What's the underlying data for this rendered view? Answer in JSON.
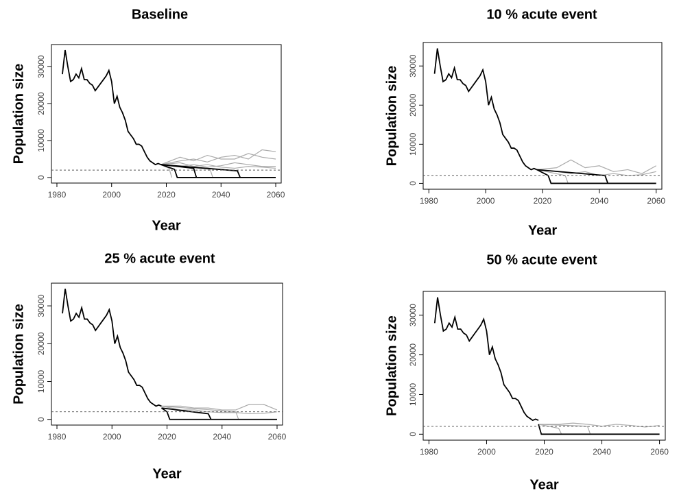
{
  "chart_data": [
    {
      "type": "line",
      "title": "Baseline",
      "xlabel": "Year",
      "ylabel": "Population size",
      "xlim": [
        1978,
        2062
      ],
      "ylim": [
        -1500,
        36000
      ],
      "xticks": [
        1980,
        2000,
        2020,
        2040,
        2060
      ],
      "yticks": [
        0,
        10000,
        20000,
        30000
      ],
      "threshold": 2000,
      "series": [
        {
          "color": "#aaaaaa",
          "x": [
            2018,
            2025,
            2030,
            2035,
            2040,
            2045,
            2050,
            2055,
            2060
          ],
          "values": [
            3500,
            4500,
            5000,
            4200,
            5500,
            6000,
            5000,
            7500,
            7000
          ]
        },
        {
          "color": "#aaaaaa",
          "x": [
            2018,
            2025,
            2030,
            2035,
            2040,
            2045,
            2050,
            2055,
            2060
          ],
          "values": [
            3500,
            3000,
            3500,
            2800,
            3200,
            4000,
            3500,
            3000,
            3000
          ]
        },
        {
          "color": "#aaaaaa",
          "x": [
            2018,
            2025,
            2030,
            2035,
            2040,
            2045,
            2050,
            2055,
            2060
          ],
          "values": [
            3500,
            4000,
            3000,
            3500,
            2800,
            2500,
            3000,
            2800,
            2500
          ]
        },
        {
          "color": "#aaaaaa",
          "x": [
            2018,
            2025,
            2030,
            2035,
            2040,
            2045,
            2050,
            2055,
            2060
          ],
          "values": [
            3500,
            5500,
            4500,
            6000,
            5000,
            5000,
            6500,
            5500,
            5000
          ]
        },
        {
          "color": "#aaaaaa",
          "x": [
            2018,
            2021,
            2022
          ],
          "values": [
            3500,
            2500,
            0
          ]
        },
        {
          "color": "#aaaaaa",
          "x": [
            2018,
            2036,
            2037
          ],
          "values": [
            3500,
            2200,
            0
          ]
        },
        {
          "color": "#000000",
          "x": [
            2018,
            2023,
            2024,
            2060
          ],
          "values": [
            3500,
            2200,
            0,
            0
          ]
        },
        {
          "color": "#000000",
          "x": [
            2018,
            2030,
            2031
          ],
          "values": [
            3500,
            2500,
            0
          ]
        },
        {
          "color": "#000000",
          "x": [
            2018,
            2046,
            2047
          ],
          "values": [
            3500,
            1800,
            0
          ]
        },
        {
          "color": "#000000",
          "x": [
            1982,
            1983,
            1984,
            1985,
            1986,
            1987,
            1988,
            1989,
            1990,
            1991,
            1992,
            1993,
            1994,
            1995,
            1996,
            1997,
            1998,
            1999,
            2000,
            2001,
            2002,
            2003,
            2004,
            2005,
            2006,
            2007,
            2008,
            2009,
            2010,
            2011,
            2012,
            2013,
            2014,
            2015,
            2016,
            2017,
            2018
          ],
          "values": [
            28000,
            34500,
            30000,
            26000,
            26500,
            28000,
            27000,
            29500,
            26500,
            26500,
            25500,
            25000,
            23500,
            24500,
            25500,
            26500,
            27500,
            29000,
            26000,
            20000,
            22000,
            19000,
            17500,
            15500,
            12500,
            11500,
            10500,
            9000,
            9000,
            8500,
            7000,
            5500,
            4500,
            4000,
            3500,
            3800,
            3500
          ]
        }
      ]
    },
    {
      "type": "line",
      "title": "10 % acute event",
      "xlabel": "Year",
      "ylabel": "Population size",
      "xlim": [
        1978,
        2062
      ],
      "ylim": [
        -1500,
        36000
      ],
      "xticks": [
        1980,
        2000,
        2020,
        2040,
        2060
      ],
      "yticks": [
        0,
        10000,
        20000,
        30000
      ],
      "threshold": 2000,
      "series": [
        {
          "color": "#aaaaaa",
          "x": [
            2018,
            2025,
            2030,
            2035,
            2040,
            2045,
            2050,
            2055,
            2060
          ],
          "values": [
            3500,
            4000,
            6000,
            4000,
            4500,
            3000,
            3500,
            2500,
            4500
          ]
        },
        {
          "color": "#aaaaaa",
          "x": [
            2018,
            2025,
            2030,
            2035,
            2040,
            2045,
            2050,
            2055,
            2060
          ],
          "values": [
            3500,
            3000,
            2500,
            3000,
            2000,
            2500,
            2000,
            2200,
            3000
          ]
        },
        {
          "color": "#aaaaaa",
          "x": [
            2018,
            2028,
            2029
          ],
          "values": [
            3500,
            2000,
            0
          ]
        },
        {
          "color": "#000000",
          "x": [
            2018,
            2022,
            2023,
            2060
          ],
          "values": [
            3500,
            2000,
            0,
            0
          ]
        },
        {
          "color": "#000000",
          "x": [
            2018,
            2042,
            2043
          ],
          "values": [
            3500,
            2000,
            0
          ]
        },
        {
          "color": "#000000",
          "x": [
            1982,
            1983,
            1984,
            1985,
            1986,
            1987,
            1988,
            1989,
            1990,
            1991,
            1992,
            1993,
            1994,
            1995,
            1996,
            1997,
            1998,
            1999,
            2000,
            2001,
            2002,
            2003,
            2004,
            2005,
            2006,
            2007,
            2008,
            2009,
            2010,
            2011,
            2012,
            2013,
            2014,
            2015,
            2016,
            2017,
            2018
          ],
          "values": [
            28000,
            34500,
            30000,
            26000,
            26500,
            28000,
            27000,
            29500,
            26500,
            26500,
            25500,
            25000,
            23500,
            24500,
            25500,
            26500,
            27500,
            29000,
            26000,
            20000,
            22000,
            19000,
            17500,
            15500,
            12500,
            11500,
            10500,
            9000,
            9000,
            8500,
            7000,
            5500,
            4500,
            4000,
            3500,
            3800,
            3500
          ]
        }
      ]
    },
    {
      "type": "line",
      "title": "25 % acute event",
      "xlabel": "Year",
      "ylabel": "Population size",
      "xlim": [
        1978,
        2062
      ],
      "ylim": [
        -1500,
        36000
      ],
      "xticks": [
        1980,
        2000,
        2020,
        2040,
        2060
      ],
      "yticks": [
        0,
        10000,
        20000,
        30000
      ],
      "threshold": 2000,
      "series": [
        {
          "color": "#aaaaaa",
          "x": [
            2018,
            2025,
            2030,
            2035,
            2040,
            2045,
            2050,
            2055,
            2060
          ],
          "values": [
            3500,
            3500,
            3000,
            3000,
            2500,
            2500,
            4000,
            4000,
            2500
          ]
        },
        {
          "color": "#aaaaaa",
          "x": [
            2018,
            2025,
            2030,
            2035,
            2040,
            2045,
            2050,
            2055,
            2060
          ],
          "values": [
            3500,
            2500,
            2500,
            2000,
            1800,
            1800,
            1500,
            1600,
            2000
          ]
        },
        {
          "color": "#aaaaaa",
          "x": [
            2018,
            2045,
            2046
          ],
          "values": [
            3500,
            2000,
            0
          ]
        },
        {
          "color": "#000000",
          "x": [
            2018,
            2020,
            2021,
            2060
          ],
          "values": [
            3000,
            2000,
            0,
            0
          ]
        },
        {
          "color": "#000000",
          "x": [
            2018,
            2035,
            2036
          ],
          "values": [
            3000,
            1500,
            0
          ]
        },
        {
          "color": "#000000",
          "x": [
            1982,
            1983,
            1984,
            1985,
            1986,
            1987,
            1988,
            1989,
            1990,
            1991,
            1992,
            1993,
            1994,
            1995,
            1996,
            1997,
            1998,
            1999,
            2000,
            2001,
            2002,
            2003,
            2004,
            2005,
            2006,
            2007,
            2008,
            2009,
            2010,
            2011,
            2012,
            2013,
            2014,
            2015,
            2016,
            2017,
            2018
          ],
          "values": [
            28000,
            34500,
            30000,
            26000,
            26500,
            28000,
            27000,
            29500,
            26500,
            26500,
            25500,
            25000,
            23500,
            24500,
            25500,
            26500,
            27500,
            29000,
            26000,
            20000,
            22000,
            19000,
            17500,
            15500,
            12500,
            11500,
            10500,
            9000,
            9000,
            8500,
            7000,
            5500,
            4500,
            4000,
            3500,
            3800,
            3500
          ]
        }
      ]
    },
    {
      "type": "line",
      "title": "50 % acute event",
      "xlabel": "Year",
      "ylabel": "Population size",
      "xlim": [
        1978,
        2062
      ],
      "ylim": [
        -1500,
        36000
      ],
      "xticks": [
        1980,
        2000,
        2020,
        2040,
        2060
      ],
      "yticks": [
        0,
        10000,
        20000,
        30000
      ],
      "threshold": 2000,
      "series": [
        {
          "color": "#aaaaaa",
          "x": [
            2018,
            2025,
            2030,
            2035,
            2040,
            2045,
            2050,
            2055,
            2060
          ],
          "values": [
            2500,
            2500,
            2800,
            2500,
            2000,
            2500,
            2200,
            1800,
            2200
          ]
        },
        {
          "color": "#aaaaaa",
          "x": [
            2018,
            2035,
            2036
          ],
          "values": [
            2500,
            2000,
            0
          ]
        },
        {
          "color": "#aaaaaa",
          "x": [
            2018,
            2025,
            2026
          ],
          "values": [
            2500,
            1500,
            0
          ]
        },
        {
          "color": "#000000",
          "x": [
            2018,
            2019,
            2060
          ],
          "values": [
            2500,
            0,
            0
          ]
        },
        {
          "color": "#000000",
          "x": [
            1982,
            1983,
            1984,
            1985,
            1986,
            1987,
            1988,
            1989,
            1990,
            1991,
            1992,
            1993,
            1994,
            1995,
            1996,
            1997,
            1998,
            1999,
            2000,
            2001,
            2002,
            2003,
            2004,
            2005,
            2006,
            2007,
            2008,
            2009,
            2010,
            2011,
            2012,
            2013,
            2014,
            2015,
            2016,
            2017,
            2018
          ],
          "values": [
            28000,
            34500,
            30000,
            26000,
            26500,
            28000,
            27000,
            29500,
            26500,
            26500,
            25500,
            25000,
            23500,
            24500,
            25500,
            26500,
            27500,
            29000,
            26000,
            20000,
            22000,
            19000,
            17500,
            15500,
            12500,
            11500,
            10500,
            9000,
            9000,
            8500,
            7000,
            5500,
            4500,
            4000,
            3500,
            3800,
            3500
          ]
        }
      ]
    }
  ]
}
